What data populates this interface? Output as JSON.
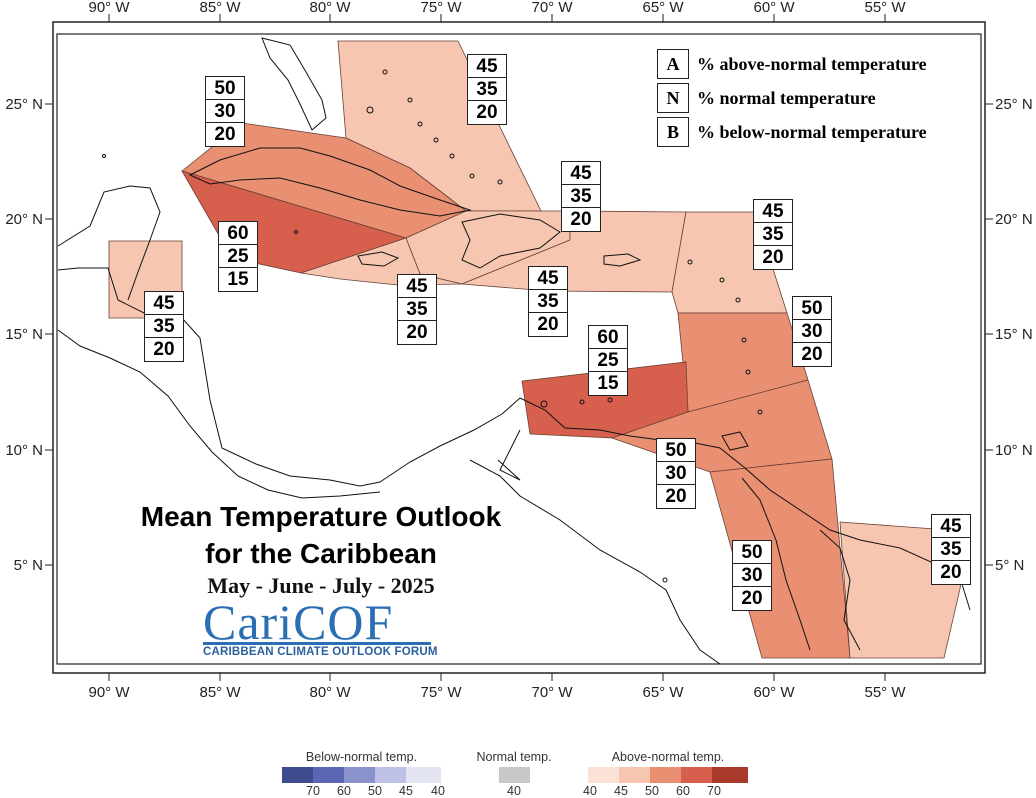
{
  "title": {
    "line1": "Mean Temperature Outlook",
    "line2": "for the Caribbean",
    "period": "May - June - July - 2025"
  },
  "logo": {
    "name": "CariCOF",
    "tagline": "CARIBBEAN CLIMATE OUTLOOK FORUM"
  },
  "legend_key": [
    {
      "letter": "A",
      "text": "% above-normal temperature"
    },
    {
      "letter": "N",
      "text": "% normal temperature"
    },
    {
      "letter": "B",
      "text": "% below-normal temperature"
    }
  ],
  "axes": {
    "longitude_ticks": [
      "90° W",
      "85° W",
      "80° W",
      "75° W",
      "70° W",
      "65° W",
      "60° W",
      "55° W"
    ],
    "latitude_ticks": [
      "25° N",
      "20° N",
      "15° N",
      "10° N",
      "5° N"
    ]
  },
  "forecast_zones": [
    {
      "zone": "bahamas",
      "probs": [
        "45",
        "35",
        "20"
      ],
      "fill": "#f6c6b1"
    },
    {
      "zone": "cuba",
      "probs": [
        "50",
        "30",
        "20"
      ],
      "fill": "#e98f72"
    },
    {
      "zone": "cayman-jamaica",
      "probs": [
        "60",
        "25",
        "15"
      ],
      "fill": "#d6604d"
    },
    {
      "zone": "belize",
      "probs": [
        "45",
        "35",
        "20"
      ],
      "fill": "#f6c6b1"
    },
    {
      "zone": "hispaniola",
      "probs": [
        "45",
        "35",
        "20"
      ],
      "fill": "#f6c6b1"
    },
    {
      "zone": "puerto-rico",
      "probs": [
        "45",
        "35",
        "20"
      ],
      "fill": "#f6c6b1"
    },
    {
      "zone": "north-caribbean-channel",
      "probs": [
        "45",
        "35",
        "20"
      ],
      "fill": "#f6c6b1"
    },
    {
      "zone": "leeward-islands",
      "probs": [
        "45",
        "35",
        "20"
      ],
      "fill": "#f6c6b1"
    },
    {
      "zone": "windward-islands",
      "probs": [
        "50",
        "30",
        "20"
      ],
      "fill": "#e98f72"
    },
    {
      "zone": "abc-islands",
      "probs": [
        "60",
        "25",
        "15"
      ],
      "fill": "#d6604d"
    },
    {
      "zone": "trinidad",
      "probs": [
        "50",
        "30",
        "20"
      ],
      "fill": "#e98f72"
    },
    {
      "zone": "guyana",
      "probs": [
        "50",
        "30",
        "20"
      ],
      "fill": "#e98f72"
    },
    {
      "zone": "suriname-guiana",
      "probs": [
        "45",
        "35",
        "20"
      ],
      "fill": "#f6c6b1"
    }
  ],
  "colorbar": {
    "below": {
      "title": "Below-normal temp.",
      "colors": [
        "#3e4b8c",
        "#5b67b3",
        "#8a92cc",
        "#bdc2e4",
        "#e3e5f3"
      ],
      "ticks": [
        "70",
        "60",
        "50",
        "45",
        "40"
      ]
    },
    "normal": {
      "title": "Normal temp.",
      "colors": [
        "#c8c8c8"
      ],
      "ticks": [
        "40"
      ]
    },
    "above": {
      "title": "Above-normal temp.",
      "colors": [
        "#fbe1d6",
        "#f6c6b1",
        "#e98f72",
        "#d6604d",
        "#a83a2c"
      ],
      "ticks": [
        "40",
        "45",
        "50",
        "60",
        "70"
      ]
    }
  }
}
